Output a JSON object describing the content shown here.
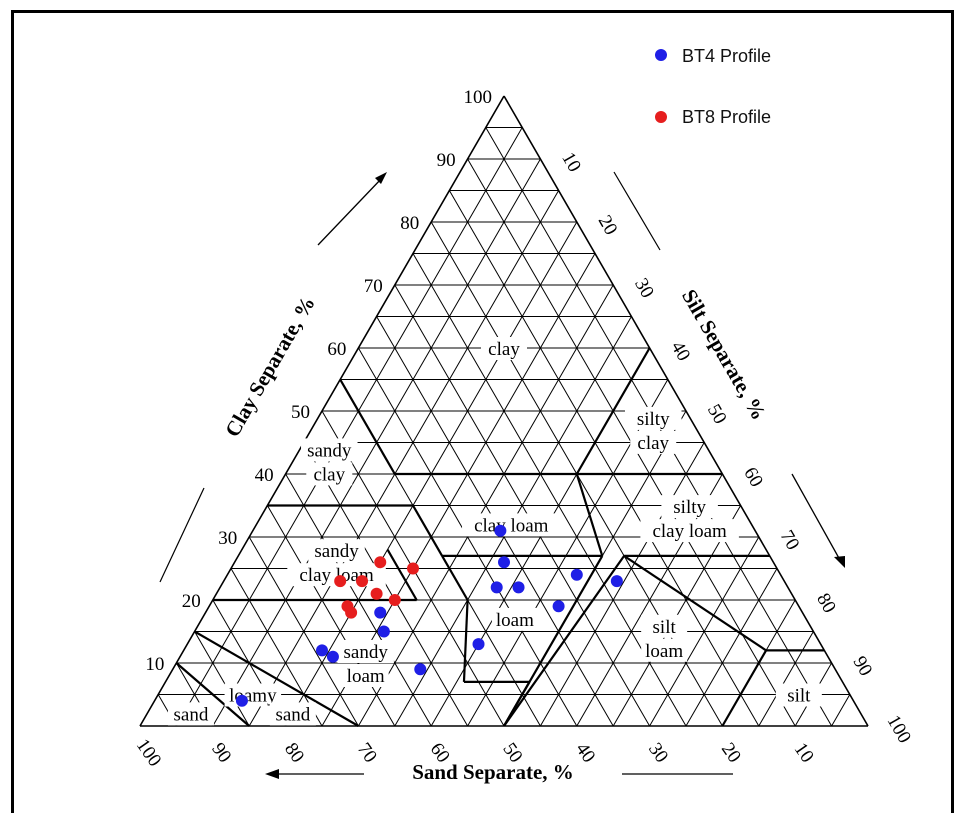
{
  "chart_data": {
    "type": "scatter",
    "subtype": "soil texture triangle",
    "axes": {
      "clay": {
        "label": "Clay Separate, %",
        "ticks": [
          "10",
          "20",
          "30",
          "40",
          "50",
          "60",
          "70",
          "80",
          "90",
          "100"
        ],
        "range": [
          0,
          100
        ]
      },
      "silt": {
        "label": "Silt Separate, %",
        "ticks": [
          "10",
          "20",
          "30",
          "40",
          "50",
          "60",
          "70",
          "80",
          "90",
          "100"
        ],
        "range": [
          0,
          100
        ]
      },
      "sand": {
        "label": "Sand Separate, %",
        "ticks": [
          "100",
          "90",
          "80",
          "70",
          "60",
          "50",
          "40",
          "30",
          "20",
          "10"
        ],
        "range": [
          0,
          100
        ]
      }
    },
    "grid": true,
    "legend_position": "top-right",
    "regions": [
      {
        "lines": [
          "clay"
        ],
        "clay": 60,
        "sand": 20
      },
      {
        "lines": [
          "silty",
          "clay"
        ],
        "clay": 47,
        "sand": 6
      },
      {
        "lines": [
          "sandy",
          "clay"
        ],
        "clay": 42,
        "sand": 53
      },
      {
        "lines": [
          "clay loam"
        ],
        "clay": 32,
        "sand": 33
      },
      {
        "lines": [
          "silty",
          "clay loam"
        ],
        "clay": 33,
        "sand": 8
      },
      {
        "lines": [
          "sandy",
          "clay loam"
        ],
        "clay": 26,
        "sand": 60
      },
      {
        "lines": [
          "loam"
        ],
        "clay": 17,
        "sand": 40
      },
      {
        "lines": [
          "silt",
          "loam"
        ],
        "clay": 14,
        "sand": 21
      },
      {
        "lines": [
          "sandy",
          "loam"
        ],
        "clay": 10,
        "sand": 64
      },
      {
        "lines": [
          "silt"
        ],
        "clay": 5,
        "sand": 7
      },
      {
        "lines": [
          "loamy"
        ],
        "clay": 5,
        "sand": 82
      },
      {
        "lines": [
          "sand"
        ],
        "clay": 2,
        "sand": 78
      },
      {
        "lines": [
          "sand"
        ],
        "clay": 2,
        "sand": 92
      }
    ],
    "series": [
      {
        "name": "BT4 Profile",
        "color": "#1f1fe6",
        "points": [
          {
            "clay": 31,
            "sand": 35
          },
          {
            "clay": 26,
            "sand": 37
          },
          {
            "clay": 24,
            "sand": 28
          },
          {
            "clay": 23,
            "sand": 23
          },
          {
            "clay": 22,
            "sand": 40
          },
          {
            "clay": 22,
            "sand": 37
          },
          {
            "clay": 19,
            "sand": 33
          },
          {
            "clay": 18,
            "sand": 58
          },
          {
            "clay": 15,
            "sand": 59
          },
          {
            "clay": 13,
            "sand": 47
          },
          {
            "clay": 12,
            "sand": 69
          },
          {
            "clay": 11,
            "sand": 68
          },
          {
            "clay": 9,
            "sand": 57
          },
          {
            "clay": 4,
            "sand": 84
          }
        ]
      },
      {
        "name": "BT8 Profile",
        "color": "#e61e1e",
        "points": [
          {
            "clay": 26,
            "sand": 54
          },
          {
            "clay": 25,
            "sand": 50
          },
          {
            "clay": 23,
            "sand": 58
          },
          {
            "clay": 23,
            "sand": 61
          },
          {
            "clay": 21,
            "sand": 57
          },
          {
            "clay": 20,
            "sand": 55
          },
          {
            "clay": 19,
            "sand": 62
          },
          {
            "clay": 18,
            "sand": 62
          }
        ]
      }
    ]
  }
}
